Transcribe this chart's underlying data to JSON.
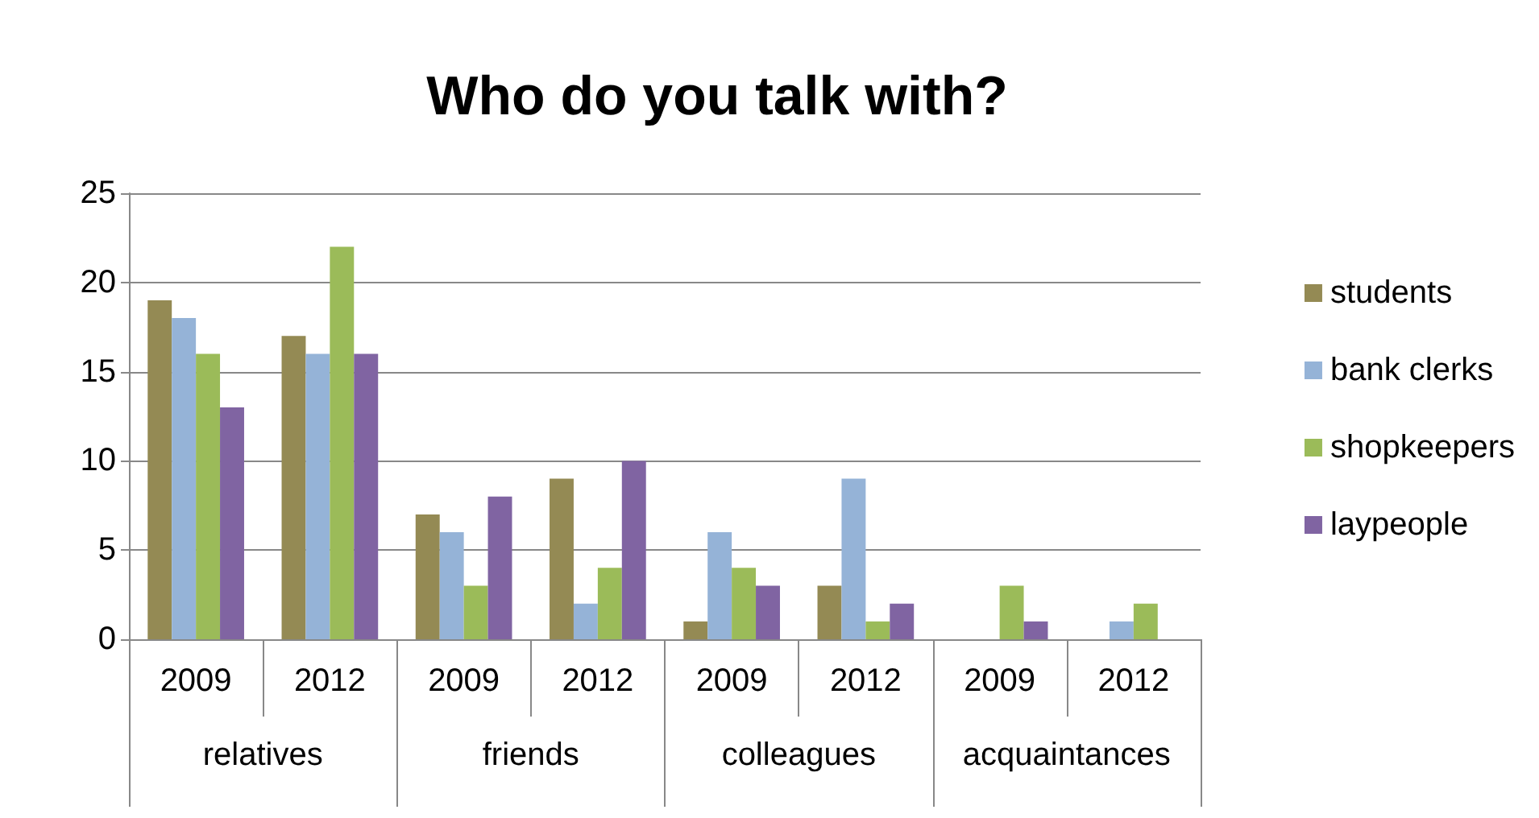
{
  "chart_data": {
    "type": "bar",
    "title": "Who do you talk with?",
    "categories": [
      "2009",
      "2012",
      "2009",
      "2012",
      "2009",
      "2012",
      "2009",
      "2012"
    ],
    "annotations": [
      "relatives",
      "friends",
      "colleagues",
      "acquaintances"
    ],
    "series": [
      {
        "name": "students",
        "color": "#948a54",
        "values": [
          19,
          17,
          7,
          9,
          1,
          3,
          0,
          0
        ]
      },
      {
        "name": "bank clerks",
        "color": "#95b3d7",
        "values": [
          18,
          16,
          6,
          2,
          6,
          9,
          0,
          1
        ]
      },
      {
        "name": "shopkeepers",
        "color": "#9bbb59",
        "values": [
          16,
          22,
          3,
          4,
          4,
          1,
          3,
          2
        ]
      },
      {
        "name": "laypeople",
        "color": "#8064a2",
        "values": [
          13,
          16,
          8,
          10,
          3,
          2,
          1,
          0
        ]
      }
    ],
    "ylim": [
      0,
      25
    ],
    "yticks": [
      0,
      5,
      10,
      15,
      20,
      25
    ],
    "grid": "y",
    "legend": "right"
  }
}
